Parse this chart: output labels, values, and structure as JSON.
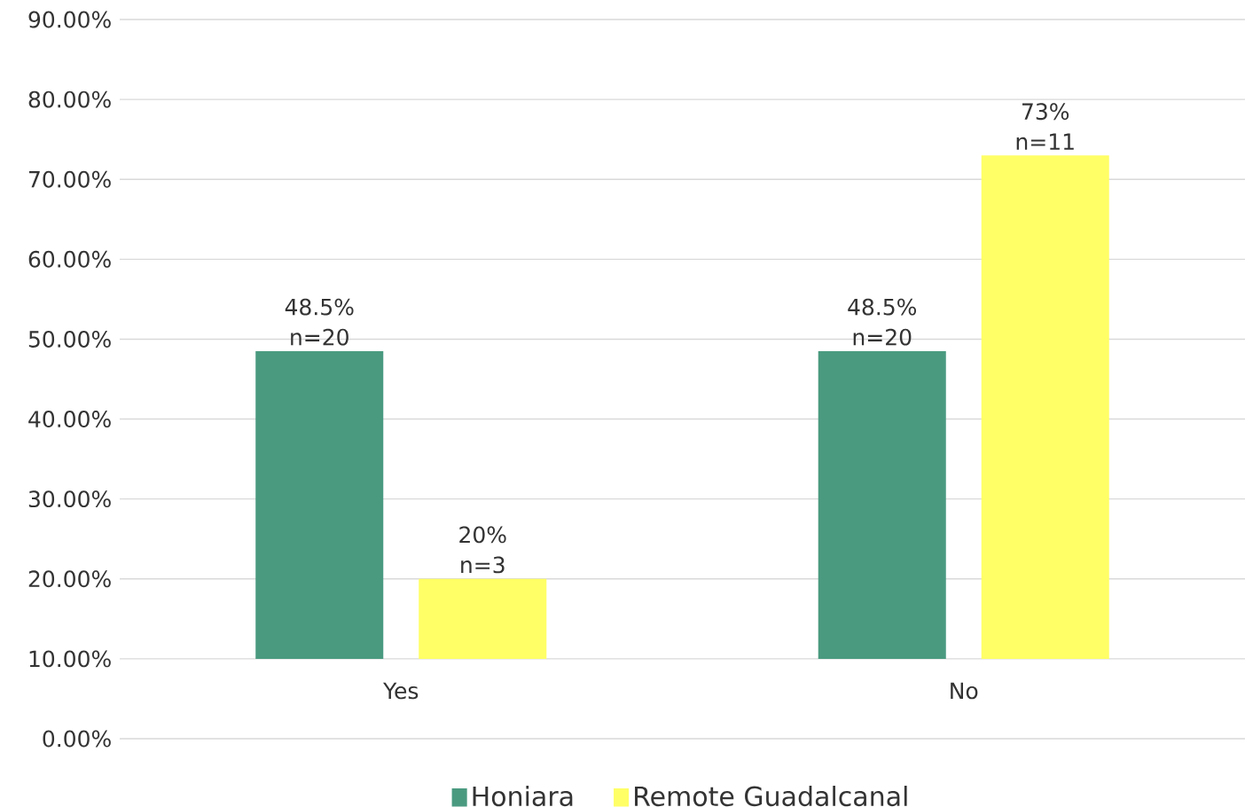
{
  "chart_data": {
    "type": "bar",
    "categories": [
      "Yes",
      "No"
    ],
    "series": [
      {
        "name": "Honiara",
        "color": "#4a9a80",
        "base": [
          10,
          10
        ],
        "values": [
          38.5,
          38.5
        ]
      },
      {
        "name": "Remote Guadalcanal",
        "color": "#ffff66",
        "base": [
          10,
          10
        ],
        "values": [
          10,
          63
        ]
      }
    ],
    "annotations": [
      "48.5% n=20",
      "20% n=3",
      "48.5% n=20",
      "73% n=11"
    ],
    "ylim": [
      0,
      90
    ],
    "yticks": [
      {
        "value": 0,
        "label": "0.00%"
      },
      {
        "value": 10,
        "label": "10.00%"
      },
      {
        "value": 20,
        "label": "20.00%"
      },
      {
        "value": 30,
        "label": "30.00%"
      },
      {
        "value": 40,
        "label": "40.00%"
      },
      {
        "value": 50,
        "label": "50.00%"
      },
      {
        "value": 60,
        "label": "60.00%"
      },
      {
        "value": 70,
        "label": "70.00%"
      },
      {
        "value": 80,
        "label": "80.00%"
      },
      {
        "value": 90,
        "label": "90.00%"
      }
    ],
    "grid": "y",
    "legend": "bottom"
  }
}
